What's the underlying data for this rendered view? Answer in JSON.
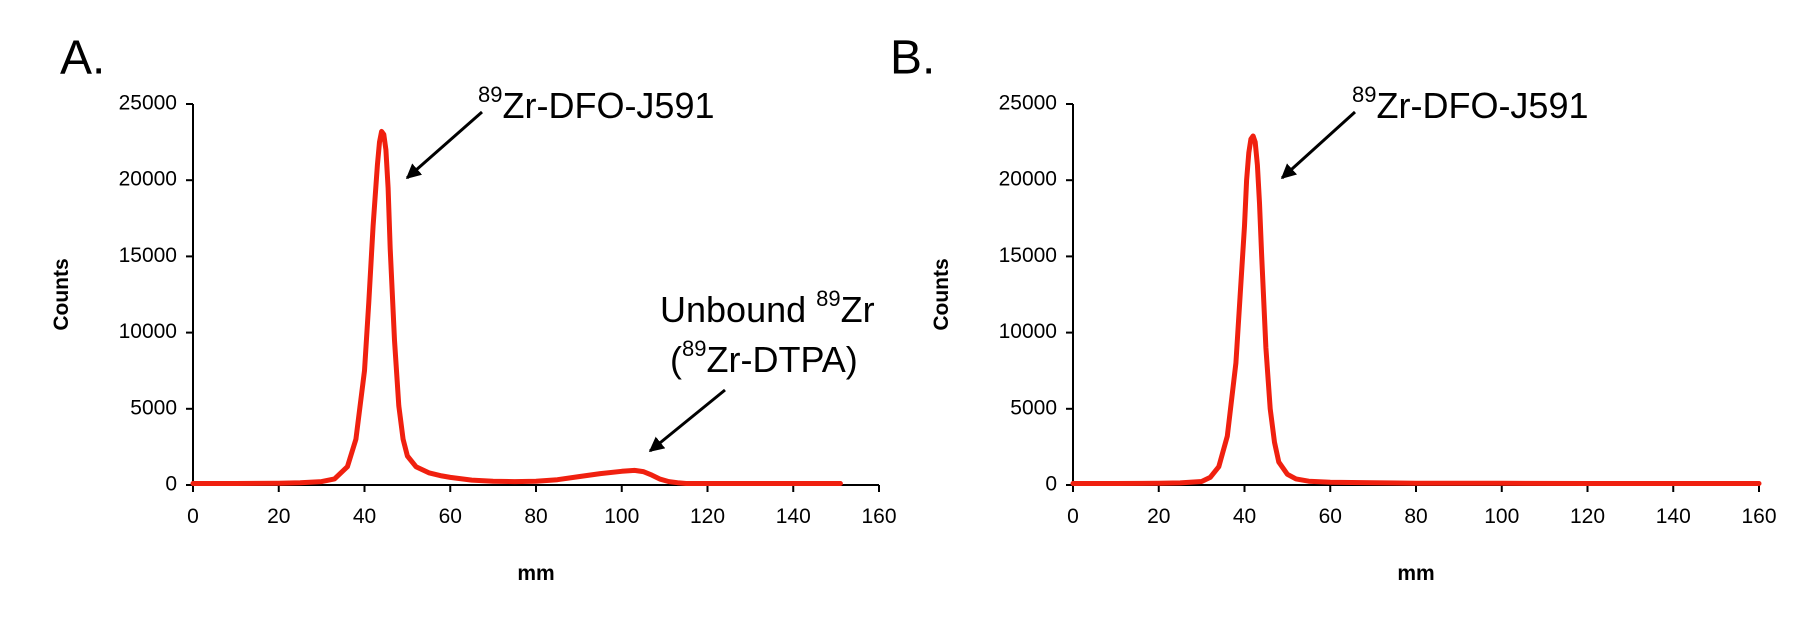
{
  "chart_data": [
    {
      "panel": "A.",
      "type": "line",
      "xlabel": "mm",
      "ylabel": "Counts",
      "xlim": [
        0,
        160
      ],
      "ylim": [
        0,
        25000
      ],
      "xticks": [
        0,
        20,
        40,
        60,
        80,
        100,
        120,
        140,
        160
      ],
      "yticks": [
        0,
        5000,
        10000,
        15000,
        20000,
        25000
      ],
      "line_color": "#f0200f",
      "series": [
        {
          "name": "trace",
          "x": [
            0,
            10,
            20,
            25,
            30,
            33,
            36,
            38,
            40,
            41,
            42,
            43,
            43.5,
            44,
            44.5,
            45,
            45.5,
            46,
            47,
            48,
            49,
            50,
            52,
            55,
            58,
            60,
            65,
            70,
            75,
            80,
            85,
            90,
            95,
            100,
            103,
            105,
            107,
            109,
            111,
            113,
            115,
            120,
            130,
            140,
            151
          ],
          "y": [
            100,
            100,
            120,
            150,
            220,
            400,
            1200,
            3000,
            7500,
            12000,
            17000,
            21000,
            22500,
            23200,
            23000,
            22000,
            19500,
            15500,
            9500,
            5200,
            3000,
            1900,
            1200,
            800,
            600,
            500,
            320,
            250,
            220,
            240,
            350,
            550,
            750,
            900,
            960,
            880,
            650,
            380,
            220,
            150,
            100,
            100,
            100,
            100,
            100
          ]
        }
      ],
      "annotations": [
        {
          "sup": "89",
          "text": "Zr-DFO-J591"
        },
        {
          "line1_prefix": "Unbound ",
          "line1_sup": "89",
          "line1_suffix": "Zr",
          "line2_prefix": "(",
          "line2_sup": "89",
          "line2_suffix": "Zr-DTPA)"
        }
      ]
    },
    {
      "panel": "B.",
      "type": "line",
      "xlabel": "mm",
      "ylabel": "Counts",
      "xlim": [
        0,
        160
      ],
      "ylim": [
        0,
        25000
      ],
      "xticks": [
        0,
        20,
        40,
        60,
        80,
        100,
        120,
        140,
        160
      ],
      "yticks": [
        0,
        5000,
        10000,
        15000,
        20000,
        25000
      ],
      "line_color": "#f0200f",
      "series": [
        {
          "name": "trace",
          "x": [
            0,
            10,
            20,
            25,
            30,
            32,
            34,
            36,
            38,
            39,
            40,
            40.5,
            41,
            41.5,
            42,
            42.5,
            43,
            43.5,
            44,
            45,
            46,
            47,
            48,
            50,
            52,
            55,
            60,
            70,
            80,
            100,
            120,
            140,
            160
          ],
          "y": [
            100,
            100,
            110,
            140,
            230,
            500,
            1200,
            3200,
            8000,
            12500,
            17000,
            20000,
            21800,
            22700,
            22900,
            22500,
            21000,
            18500,
            15000,
            9000,
            5000,
            2800,
            1500,
            700,
            400,
            250,
            180,
            150,
            120,
            110,
            100,
            100,
            100
          ]
        }
      ],
      "annotations": [
        {
          "sup": "89",
          "text": "Zr-DFO-J591"
        }
      ]
    }
  ]
}
